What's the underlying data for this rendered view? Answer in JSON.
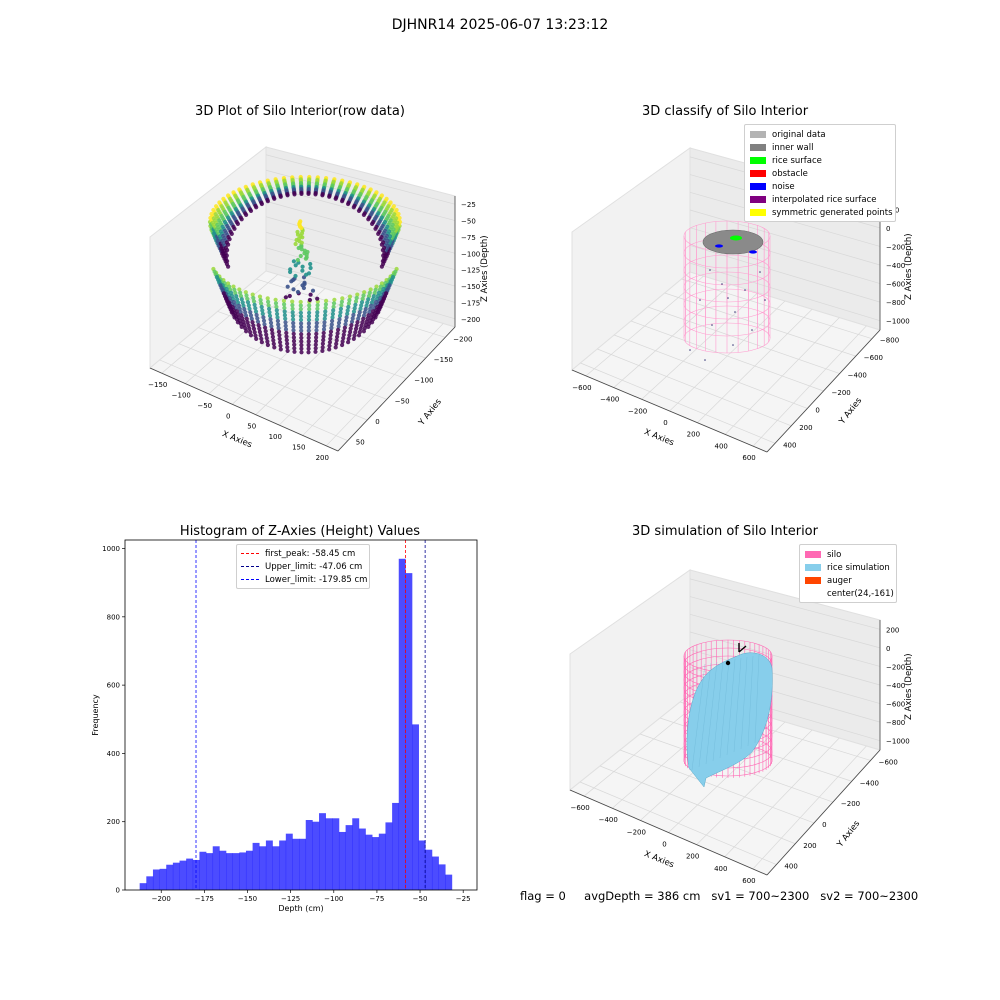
{
  "suptitle": "DJHNR14 2025-06-07 13:23:12",
  "status": {
    "flag": "flag = 0",
    "avg_depth": "avgDepth = 386 cm",
    "sv1": "sv1 = 700~2300",
    "sv2": "sv2 = 700~2300"
  },
  "chart_data": [
    {
      "type": "scatter",
      "subtype": "3d",
      "title": "3D Plot of Silo Interior(row data)",
      "xlabel": "X Axies",
      "ylabel": "Y Axies",
      "zlabel": "Z Axies (Depth)",
      "x_ticks": [
        "−150",
        "−100",
        "−50",
        "0",
        "50",
        "100",
        "150",
        "200"
      ],
      "y_ticks": [
        "−200",
        "−150",
        "−100",
        "−50",
        "0",
        "50"
      ],
      "z_ticks": [
        "−25",
        "−50",
        "−75",
        "−100",
        "−125",
        "−150",
        "−175",
        "−200"
      ],
      "xlim": [
        -180,
        210
      ],
      "ylim": [
        -210,
        70
      ],
      "zlim": [
        -215,
        -15
      ],
      "colormap": "viridis",
      "grid": true
    },
    {
      "type": "scatter",
      "subtype": "3d",
      "title": "3D classify of Silo Interior",
      "xlabel": "X Axies",
      "ylabel": "Y Axies",
      "zlabel": "Z Axies (Depth)",
      "x_ticks": [
        "−600",
        "−400",
        "−200",
        "0",
        "200",
        "400",
        "600"
      ],
      "y_ticks": [
        "−800",
        "−600",
        "−400",
        "−200",
        "0",
        "200",
        "400"
      ],
      "z_ticks": [
        "200",
        "0",
        "−200",
        "−400",
        "−600",
        "−800",
        "−1000"
      ],
      "grid": true,
      "legend": {
        "position": "top-right",
        "entries": [
          {
            "label": "original data",
            "color": "#b3b3b3"
          },
          {
            "label": "inner wall",
            "color": "#808080"
          },
          {
            "label": "rice surface",
            "color": "#00ff00"
          },
          {
            "label": "obstacle",
            "color": "#ff0000"
          },
          {
            "label": "noise",
            "color": "#0000ff"
          },
          {
            "label": "interpolated rice surface",
            "color": "#800080"
          },
          {
            "label": "symmetric generated points",
            "color": "#ffff00"
          }
        ]
      }
    },
    {
      "type": "bar",
      "subtype": "histogram",
      "title": "Histogram of Z-Axies (Height) Values",
      "xlabel": "Depth (cm)",
      "ylabel": "Frequency",
      "xlim": [
        -221,
        -17
      ],
      "ylim": [
        0,
        1025
      ],
      "x_ticks": [
        -200,
        -175,
        -150,
        -125,
        -100,
        -75,
        -50,
        -25
      ],
      "y_ticks": [
        0,
        200,
        400,
        600,
        800,
        1000
      ],
      "bin_width": 3.85,
      "bin_start": -212.5,
      "values": [
        20,
        40,
        60,
        62,
        74,
        80,
        86,
        92,
        88,
        112,
        108,
        128,
        115,
        108,
        108,
        110,
        115,
        138,
        128,
        145,
        128,
        145,
        165,
        150,
        150,
        205,
        200,
        225,
        210,
        210,
        170,
        190,
        210,
        180,
        162,
        155,
        165,
        198,
        255,
        970,
        928,
        485,
        145,
        118,
        98,
        75,
        45
      ],
      "bar_color": "#0000ff",
      "lines": [
        {
          "label": "first_peak: -58.45 cm",
          "x": -58.45,
          "color": "#ff0000"
        },
        {
          "label": "Upper_limit: -47.06 cm",
          "x": -47.06,
          "color": "#00008b"
        },
        {
          "label": "Lower_limit: -179.85 cm",
          "x": -179.85,
          "color": "#0000ff"
        }
      ],
      "legend": {
        "position": "top-center"
      }
    },
    {
      "type": "scatter",
      "subtype": "3d-surface",
      "title": "3D simulation of Silo Interior",
      "xlabel": "X Axies",
      "ylabel": "Y Axies",
      "zlabel": "Z Axies (Depth)",
      "x_ticks": [
        "−600",
        "−400",
        "−200",
        "0",
        "200",
        "400",
        "600"
      ],
      "y_ticks": [
        "−600",
        "−400",
        "−200",
        "0",
        "200",
        "400"
      ],
      "z_ticks": [
        "200",
        "0",
        "−200",
        "−400",
        "−600",
        "−800",
        "−1000"
      ],
      "grid": true,
      "legend": {
        "position": "top-right",
        "entries": [
          {
            "label": "silo",
            "color": "#ff69b4"
          },
          {
            "label": "rice simulation",
            "color": "#87ceeb"
          },
          {
            "label": "auger",
            "color": "#ff4500"
          },
          {
            "label": "center(24,-161)",
            "color": ""
          }
        ]
      }
    }
  ]
}
